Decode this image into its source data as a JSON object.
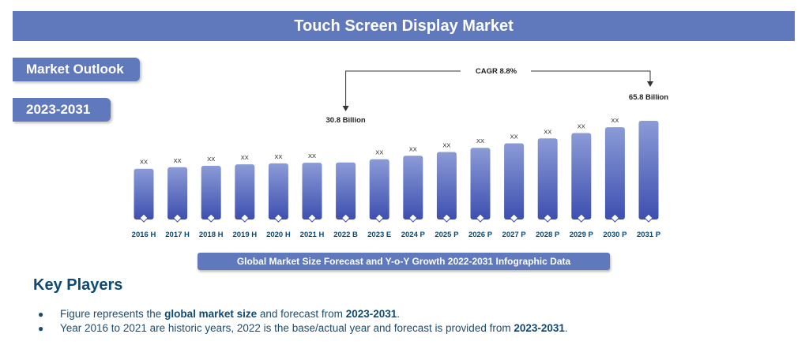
{
  "header": {
    "title": "Touch Screen Display Market"
  },
  "sidebar": {
    "outlook_label": "Market Outlook",
    "period_label": "2023-2031"
  },
  "chart_data": {
    "type": "bar",
    "categories": [
      "2016 H",
      "2017 H",
      "2018 H",
      "2019 H",
      "2020 H",
      "2021 H",
      "2022 B",
      "2023 E",
      "2024 P",
      "2025 P",
      "2026 P",
      "2027 P",
      "2028 P",
      "2029 P",
      "2030 P",
      "2031 P"
    ],
    "values": [
      25.5,
      26.8,
      28.0,
      29.2,
      30.0,
      30.5,
      30.8,
      33.5,
      36.4,
      39.6,
      43.1,
      46.9,
      51.0,
      55.5,
      60.4,
      65.8
    ],
    "value_labels": [
      "XX",
      "XX",
      "XX",
      "XX",
      "XX",
      "XX",
      "30.8 Billion",
      "XX",
      "XX",
      "XX",
      "XX",
      "XX",
      "XX",
      "XX",
      "XX",
      "65.8 Billion"
    ],
    "cagr_label": "CAGR 8.8%",
    "bar_color_top": "#8b9bd6",
    "bar_color_bottom": "#3d4fb0",
    "xlabel": "",
    "ylabel": ""
  },
  "caption": "Global Market Size Forecast and Y-o-Y Growth 2022-2031 Infographic Data",
  "key_players": {
    "title": "Key Players",
    "bullet_glyph": "●",
    "b1_pre": "Figure represents the ",
    "b1_bold1": "global market size",
    "b1_mid": " and forecast from ",
    "b1_bold2": "2023-2031",
    "b1_end": ".",
    "b2_pre": "Year 2016 to 2021 are historic years, 2022 is the base/actual year and forecast is provided from ",
    "b2_bold": "2023-2031",
    "b2_end": "."
  }
}
